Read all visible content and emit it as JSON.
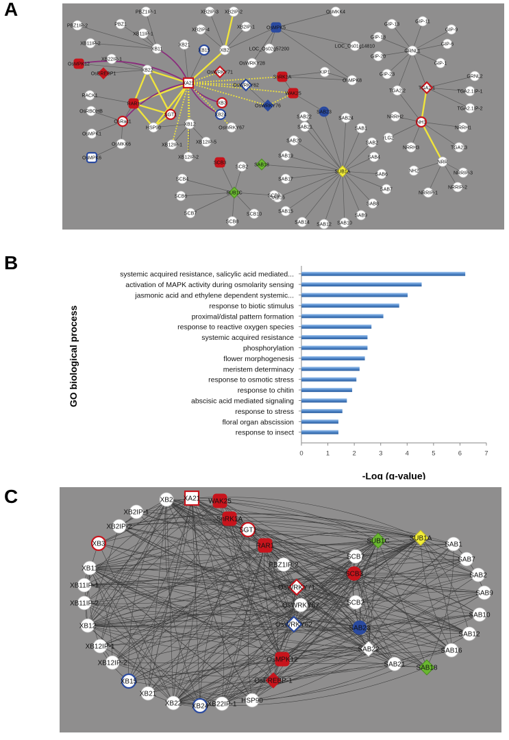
{
  "panels": {
    "a": "A",
    "b": "B",
    "c": "C"
  },
  "colors": {
    "background": "#8f8e8e",
    "node_white": "#ffffff",
    "node_red": "#c8141c",
    "node_blue": "#2a4aa0",
    "node_green": "#6ab830",
    "node_yellow": "#f2ee3a",
    "edge_yellow": "#f0e43c",
    "edge_purple": "#8a2c7c",
    "edge_dark": "#3a3a3a",
    "bar": "#4f86c8"
  },
  "network_a": {
    "nodes": [
      {
        "id": "PBZ1IP-1",
        "shape": "circle",
        "style": "white"
      },
      {
        "id": "PBZ1IP-2",
        "shape": "circle",
        "style": "white"
      },
      {
        "id": "PBZ1",
        "shape": "circle",
        "style": "white"
      },
      {
        "id": "XB11IP-1",
        "shape": "circle",
        "style": "white"
      },
      {
        "id": "XB11IP-2",
        "shape": "circle",
        "style": "white"
      },
      {
        "id": "XB22IP-1",
        "shape": "circle",
        "style": "white"
      },
      {
        "id": "XB11",
        "shape": "circle",
        "style": "white"
      },
      {
        "id": "OsMPK12",
        "shape": "roundsq",
        "style": "red"
      },
      {
        "id": "OsEREBP1",
        "shape": "diamond",
        "style": "red"
      },
      {
        "id": "XB22",
        "shape": "circle",
        "style": "white"
      },
      {
        "id": "RACK1",
        "shape": "circle",
        "style": "white"
      },
      {
        "id": "RAR1",
        "shape": "roundsq",
        "style": "red"
      },
      {
        "id": "OsRBOHB",
        "shape": "circle",
        "style": "white"
      },
      {
        "id": "OsRac1",
        "shape": "circle",
        "style": "redring"
      },
      {
        "id": "SGT1",
        "shape": "circle",
        "style": "redring"
      },
      {
        "id": "HSP90",
        "shape": "circle",
        "style": "white"
      },
      {
        "id": "OsMPK1",
        "shape": "circle",
        "style": "white"
      },
      {
        "id": "OsMKK6",
        "shape": "circle",
        "style": "white"
      },
      {
        "id": "OsMPK6",
        "shape": "roundsq",
        "style": "bluering"
      },
      {
        "id": "XB2IP-3",
        "shape": "circle",
        "style": "white"
      },
      {
        "id": "XB2IP-2",
        "shape": "circle",
        "style": "white"
      },
      {
        "id": "XB2IP-4",
        "shape": "circle",
        "style": "white"
      },
      {
        "id": "XB2IP-1",
        "shape": "circle",
        "style": "white"
      },
      {
        "id": "XB21",
        "shape": "circle",
        "style": "white"
      },
      {
        "id": "XB15",
        "shape": "circle",
        "style": "bluering"
      },
      {
        "id": "XB2",
        "shape": "circle",
        "style": "white"
      },
      {
        "id": "XA21",
        "shape": "square",
        "style": "redring"
      },
      {
        "id": "XB3",
        "shape": "circle",
        "style": "redring"
      },
      {
        "id": "XB24",
        "shape": "circle",
        "style": "bluering"
      },
      {
        "id": "XB12",
        "shape": "circle",
        "style": "white"
      },
      {
        "id": "XB12IP-1",
        "shape": "circle",
        "style": "white"
      },
      {
        "id": "XB12IP-5",
        "shape": "circle",
        "style": "white"
      },
      {
        "id": "XB12IP-2",
        "shape": "circle",
        "style": "white"
      },
      {
        "id": "OsWRKY67",
        "shape": "circle",
        "style": "white"
      },
      {
        "id": "OsWRKY71",
        "shape": "diamond",
        "style": "redring"
      },
      {
        "id": "OsWRKY62",
        "shape": "diamond",
        "style": "bluering"
      },
      {
        "id": "OsWRKY76",
        "shape": "diamond",
        "style": "blue"
      },
      {
        "id": "OsWRKY28",
        "shape": "circle",
        "style": "white"
      },
      {
        "id": "OsMKK4",
        "shape": "circle",
        "style": "white"
      },
      {
        "id": "OsMPK5",
        "shape": "roundsq",
        "style": "blue"
      },
      {
        "id": "LOC_Os02g57200",
        "shape": "circle",
        "style": "white"
      },
      {
        "id": "LOC_Os01g14810",
        "shape": "circle",
        "style": "white"
      },
      {
        "id": "SnRK1A",
        "shape": "roundsq",
        "style": "red"
      },
      {
        "id": "WAK25",
        "shape": "roundsq",
        "style": "red"
      },
      {
        "id": "KIP1",
        "shape": "circle",
        "style": "white"
      },
      {
        "id": "OsMPK8",
        "shape": "circle",
        "style": "white"
      },
      {
        "id": "SAB23",
        "shape": "circle",
        "style": "blue"
      },
      {
        "id": "SAB22",
        "shape": "circle",
        "style": "white"
      },
      {
        "id": "SAB21",
        "shape": "circle",
        "style": "white"
      },
      {
        "id": "SAB24",
        "shape": "circle",
        "style": "white"
      },
      {
        "id": "SAB20",
        "shape": "circle",
        "style": "white"
      },
      {
        "id": "SAB1",
        "shape": "circle",
        "style": "white"
      },
      {
        "id": "SAB2",
        "shape": "circle",
        "style": "white"
      },
      {
        "id": "SAB19",
        "shape": "circle",
        "style": "white"
      },
      {
        "id": "SAB18",
        "shape": "diamond",
        "style": "green"
      },
      {
        "id": "SUB1A",
        "shape": "diamond",
        "style": "yellow"
      },
      {
        "id": "SAB4",
        "shape": "circle",
        "style": "white"
      },
      {
        "id": "SAB6",
        "shape": "circle",
        "style": "white"
      },
      {
        "id": "SAB7",
        "shape": "circle",
        "style": "white"
      },
      {
        "id": "SAB17",
        "shape": "circle",
        "style": "white"
      },
      {
        "id": "SAB16",
        "shape": "circle",
        "style": "white"
      },
      {
        "id": "SAB8",
        "shape": "circle",
        "style": "white"
      },
      {
        "id": "SAB15",
        "shape": "circle",
        "style": "white"
      },
      {
        "id": "SAB9",
        "shape": "circle",
        "style": "white"
      },
      {
        "id": "SAB14",
        "shape": "circle",
        "style": "white"
      },
      {
        "id": "SAB12",
        "shape": "circle",
        "style": "white"
      },
      {
        "id": "SAB10",
        "shape": "circle",
        "style": "white"
      },
      {
        "id": "SCB3",
        "shape": "roundsq",
        "style": "red"
      },
      {
        "id": "SCB2",
        "shape": "circle",
        "style": "white"
      },
      {
        "id": "SCB4",
        "shape": "circle",
        "style": "white"
      },
      {
        "id": "SUB1C",
        "shape": "diamond",
        "style": "green"
      },
      {
        "id": "SCB6",
        "shape": "circle",
        "style": "white"
      },
      {
        "id": "SCB9",
        "shape": "circle",
        "style": "white"
      },
      {
        "id": "SCB7",
        "shape": "circle",
        "style": "white"
      },
      {
        "id": "SCB8",
        "shape": "circle",
        "style": "white"
      },
      {
        "id": "SCB10",
        "shape": "circle",
        "style": "white"
      },
      {
        "id": "GIP-13",
        "shape": "circle",
        "style": "white"
      },
      {
        "id": "GIP-11",
        "shape": "circle",
        "style": "white"
      },
      {
        "id": "GIP-18",
        "shape": "circle",
        "style": "white"
      },
      {
        "id": "GIP-9",
        "shape": "circle",
        "style": "white"
      },
      {
        "id": "GIP-6",
        "shape": "circle",
        "style": "white"
      },
      {
        "id": "GIP-20",
        "shape": "circle",
        "style": "white"
      },
      {
        "id": "GRNL1",
        "shape": "circle",
        "style": "white"
      },
      {
        "id": "GIP-1",
        "shape": "circle",
        "style": "white"
      },
      {
        "id": "GIP-23",
        "shape": "circle",
        "style": "white"
      },
      {
        "id": "GRNL2",
        "shape": "circle",
        "style": "white"
      },
      {
        "id": "TGA2.2",
        "shape": "circle",
        "style": "white"
      },
      {
        "id": "TGA2.1",
        "shape": "diamond",
        "style": "redring"
      },
      {
        "id": "TGA2.1IP-1",
        "shape": "circle",
        "style": "white"
      },
      {
        "id": "TGA2.1IP-2",
        "shape": "circle",
        "style": "white"
      },
      {
        "id": "NRRH2",
        "shape": "circle",
        "style": "white"
      },
      {
        "id": "NH1",
        "shape": "circle",
        "style": "redring"
      },
      {
        "id": "NRRH1",
        "shape": "circle",
        "style": "white"
      },
      {
        "id": "rLG2",
        "shape": "circle",
        "style": "white"
      },
      {
        "id": "NRRH3",
        "shape": "circle",
        "style": "white"
      },
      {
        "id": "TGA2.3",
        "shape": "circle",
        "style": "white"
      },
      {
        "id": "NH2",
        "shape": "circle",
        "style": "white"
      },
      {
        "id": "NRR",
        "shape": "circle",
        "style": "white"
      },
      {
        "id": "NRRIP-3",
        "shape": "circle",
        "style": "white"
      },
      {
        "id": "NRRIP-1",
        "shape": "circle",
        "style": "white"
      },
      {
        "id": "NRRIP-2",
        "shape": "circle",
        "style": "white"
      }
    ]
  },
  "chart_data": {
    "type": "bar",
    "orientation": "horizontal",
    "categories": [
      "systemic acquired resistance, salicylic acid mediated...",
      "activation of MAPK activity during osmolarity sensing",
      "jasmonic acid and ethylene dependent systemic...",
      "response to biotic stimulus",
      "proximal/distal pattern formation",
      "response to reactive oxygen species",
      "systemic acquired resistance",
      "phosphorylation",
      "flower morphogenesis",
      "meristem determinacy",
      "response to osmotic stress",
      "response to chitin",
      "abscisic acid mediated signaling",
      "response to stress",
      "floral organ abscission",
      "response to insect"
    ],
    "values": [
      6.2,
      4.55,
      4.02,
      3.7,
      3.1,
      2.65,
      2.5,
      2.5,
      2.4,
      2.2,
      2.08,
      1.92,
      1.72,
      1.55,
      1.4,
      1.4
    ],
    "xlabel": "-Log (q-value)",
    "ylabel": "GO biological process",
    "xlim": [
      0,
      7
    ],
    "xticks": [
      "0",
      "1",
      "2",
      "3",
      "4",
      "5",
      "6",
      "7"
    ],
    "grid": false
  },
  "network_c": {
    "nodes": [
      {
        "id": "XB2",
        "shape": "circle",
        "style": "white"
      },
      {
        "id": "XA21",
        "shape": "square",
        "style": "redring"
      },
      {
        "id": "WAK25",
        "shape": "roundsq",
        "style": "red"
      },
      {
        "id": "XB2IP-1",
        "shape": "circle",
        "style": "white"
      },
      {
        "id": "SnRK1A",
        "shape": "roundsq",
        "style": "red"
      },
      {
        "id": "XB2IP-2",
        "shape": "circle",
        "style": "white"
      },
      {
        "id": "SGT1",
        "shape": "circle",
        "style": "redring"
      },
      {
        "id": "SUB1C",
        "shape": "diamond",
        "style": "green"
      },
      {
        "id": "SUB1A",
        "shape": "diamond",
        "style": "yellow"
      },
      {
        "id": "SAB1",
        "shape": "circle",
        "style": "white"
      },
      {
        "id": "XB3",
        "shape": "circle",
        "style": "redring"
      },
      {
        "id": "RAR1",
        "shape": "roundsq",
        "style": "red"
      },
      {
        "id": "SCB7",
        "shape": "circle",
        "style": "white"
      },
      {
        "id": "SAB7",
        "shape": "circle",
        "style": "white"
      },
      {
        "id": "XB11",
        "shape": "circle",
        "style": "white"
      },
      {
        "id": "PBZ1IP-2",
        "shape": "circle",
        "style": "white"
      },
      {
        "id": "SCB3",
        "shape": "circle",
        "style": "red"
      },
      {
        "id": "SAB2",
        "shape": "circle",
        "style": "white"
      },
      {
        "id": "XB11IP-1",
        "shape": "circle",
        "style": "white"
      },
      {
        "id": "OsWRKY71",
        "shape": "diamond",
        "style": "redring"
      },
      {
        "id": "SAB9",
        "shape": "circle",
        "style": "white"
      },
      {
        "id": "XB11IP-2",
        "shape": "circle",
        "style": "white"
      },
      {
        "id": "OsWRKY67",
        "shape": "circle",
        "style": "white"
      },
      {
        "id": "SCB2",
        "shape": "circle",
        "style": "white"
      },
      {
        "id": "SAB10",
        "shape": "circle",
        "style": "white"
      },
      {
        "id": "XB12",
        "shape": "circle",
        "style": "white"
      },
      {
        "id": "OsWRKY62",
        "shape": "diamond",
        "style": "bluering"
      },
      {
        "id": "SAB23",
        "shape": "circle",
        "style": "blue"
      },
      {
        "id": "SAB12",
        "shape": "circle",
        "style": "white"
      },
      {
        "id": "XB12IP-1",
        "shape": "circle",
        "style": "white"
      },
      {
        "id": "SAB22",
        "shape": "diamond",
        "style": "white"
      },
      {
        "id": "SAB16",
        "shape": "circle",
        "style": "white"
      },
      {
        "id": "XB12IP-2",
        "shape": "circle",
        "style": "white"
      },
      {
        "id": "OsMPK12",
        "shape": "roundsq",
        "style": "red"
      },
      {
        "id": "SAB21",
        "shape": "circle",
        "style": "white"
      },
      {
        "id": "SAB18",
        "shape": "diamond",
        "style": "green"
      },
      {
        "id": "XB15",
        "shape": "circle",
        "style": "bluering"
      },
      {
        "id": "OsEREBP-1",
        "shape": "diamond",
        "style": "red"
      },
      {
        "id": "XB21",
        "shape": "circle",
        "style": "white"
      },
      {
        "id": "HSP90",
        "shape": "circle",
        "style": "white"
      },
      {
        "id": "XB22",
        "shape": "circle",
        "style": "white"
      },
      {
        "id": "XB22IP-1",
        "shape": "circle",
        "style": "white"
      },
      {
        "id": "XB24",
        "shape": "circle",
        "style": "bluering"
      }
    ]
  }
}
